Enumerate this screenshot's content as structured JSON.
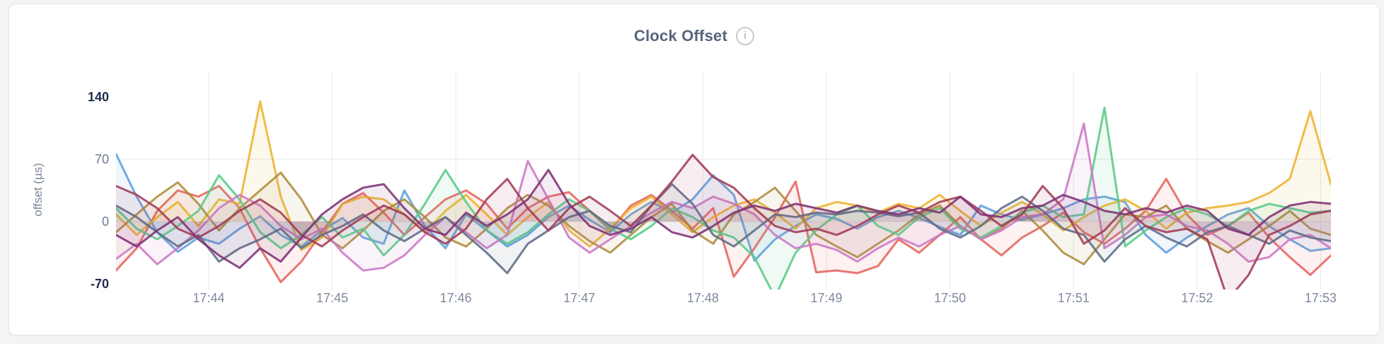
{
  "header": {
    "title": "Clock Offset",
    "info_icon_glyph": "i"
  },
  "styles": {
    "page_bg": "#f4f4f5",
    "card_bg": "#ffffff",
    "card_border": "#e4e4e6",
    "title_color": "#54667e",
    "grid_color": "#e7e7e7",
    "tick_label_color": "#7e899d",
    "y_label_emphasis_color": "#1e2c4e",
    "y_label_color": "#6e7a90",
    "axis_title_color": "#7d8799",
    "info_icon_border": "#cbcbcb",
    "info_icon_color": "#a8a8a8"
  },
  "chart_data": {
    "type": "line",
    "title": "Clock Offset",
    "ylabel": "offset (µs)",
    "xlabel": "",
    "ylim": [
      -70,
      140
    ],
    "grid": "on",
    "legend": "none",
    "time_span_seconds": 590,
    "interval_seconds": 10,
    "start_time": "17:43:15",
    "end_time": "17:53:05",
    "x_ticks": [
      "17:44",
      "17:45",
      "17:46",
      "17:47",
      "17:48",
      "17:49",
      "17:50",
      "17:51",
      "17:52",
      "17:53"
    ],
    "x_tick_offsets_s": [
      45,
      105,
      165,
      225,
      285,
      345,
      405,
      465,
      525,
      585
    ],
    "y_ticks": [
      {
        "label": "140",
        "value": 140,
        "emphasis": true
      },
      {
        "label": "70",
        "value": 70,
        "emphasis": false
      },
      {
        "label": "0",
        "value": 0,
        "emphasis": false
      },
      {
        "label": "-70",
        "value": -70,
        "emphasis": true
      }
    ],
    "h_gridline_values": [
      70,
      0
    ],
    "series": [
      {
        "name": "blue",
        "color": "#5c9fde",
        "values": [
          76,
          28,
          -12,
          -34,
          -18,
          -25,
          -8,
          6,
          -15,
          -28,
          -10,
          4,
          -18,
          -25,
          35,
          -5,
          -30,
          8,
          -10,
          -28,
          -15,
          5,
          18,
          2,
          -12,
          8,
          22,
          10,
          25,
          52,
          30,
          -44,
          -20,
          -5,
          8,
          3,
          -8,
          5,
          12,
          4,
          -6,
          -15,
          18,
          8,
          2,
          8,
          15,
          25,
          28,
          22,
          -15,
          -35,
          -18,
          -5,
          8,
          15,
          -5,
          -20,
          -33,
          -30
        ]
      },
      {
        "name": "coral",
        "color": "#e5645f",
        "values": [
          -55,
          -30,
          12,
          35,
          28,
          40,
          15,
          -30,
          -68,
          -45,
          -12,
          20,
          32,
          10,
          -15,
          5,
          25,
          35,
          20,
          -8,
          15,
          28,
          33,
          12,
          -10,
          18,
          30,
          12,
          -8,
          15,
          -62,
          -30,
          5,
          45,
          -57,
          -55,
          -58,
          -50,
          -20,
          -35,
          -15,
          5,
          -20,
          -38,
          -18,
          -5,
          10,
          -12,
          -25,
          -8,
          12,
          48,
          8,
          -15,
          -5,
          10,
          -18,
          -40,
          -60,
          -38
        ]
      },
      {
        "name": "gold",
        "color": "#edb32f",
        "values": [
          8,
          -15,
          5,
          22,
          -5,
          25,
          20,
          135,
          28,
          -32,
          -18,
          20,
          28,
          25,
          8,
          -12,
          12,
          30,
          8,
          -15,
          5,
          22,
          -10,
          -28,
          -8,
          15,
          28,
          8,
          -12,
          5,
          18,
          25,
          10,
          -8,
          15,
          22,
          18,
          10,
          20,
          15,
          30,
          12,
          -5,
          10,
          22,
          8,
          -10,
          5,
          18,
          25,
          12,
          -8,
          10,
          15,
          18,
          22,
          32,
          48,
          124,
          42
        ]
      },
      {
        "name": "khaki",
        "color": "#ac8c3e",
        "values": [
          -12,
          8,
          28,
          44,
          20,
          -10,
          15,
          35,
          55,
          25,
          -15,
          -30,
          -10,
          12,
          25,
          5,
          -18,
          -28,
          -8,
          15,
          30,
          18,
          -5,
          -22,
          -35,
          -15,
          5,
          20,
          -10,
          -25,
          8,
          22,
          38,
          12,
          -15,
          -28,
          -40,
          -25,
          -10,
          8,
          18,
          -5,
          -20,
          -8,
          12,
          -10,
          -35,
          -48,
          -20,
          8,
          5,
          18,
          -8,
          -22,
          -35,
          -20,
          -5,
          12,
          -8,
          -15
        ]
      },
      {
        "name": "green",
        "color": "#58cb86",
        "values": [
          15,
          -8,
          -20,
          -5,
          12,
          52,
          25,
          -12,
          -30,
          -15,
          5,
          -18,
          -8,
          -38,
          -15,
          20,
          58,
          22,
          -10,
          -25,
          -12,
          8,
          25,
          12,
          -8,
          -20,
          -5,
          15,
          5,
          -10,
          -18,
          -40,
          -85,
          -35,
          -10,
          8,
          18,
          -5,
          -15,
          5,
          15,
          -8,
          -18,
          -5,
          10,
          18,
          5,
          8,
          128,
          -28,
          -10,
          5,
          15,
          8,
          -5,
          12,
          20,
          15,
          10,
          12
        ]
      },
      {
        "name": "orchid",
        "color": "#cc79c4",
        "values": [
          -42,
          -25,
          -48,
          -30,
          -10,
          15,
          30,
          18,
          -5,
          -20,
          -8,
          -35,
          -55,
          -52,
          -38,
          -15,
          5,
          -12,
          -30,
          -15,
          68,
          25,
          -18,
          -35,
          -20,
          -5,
          10,
          22,
          15,
          28,
          20,
          8,
          -15,
          -30,
          -25,
          -32,
          -45,
          -30,
          -18,
          -28,
          -15,
          -5,
          -20,
          -10,
          5,
          8,
          25,
          110,
          -30,
          -15,
          5,
          8,
          -5,
          -10,
          -25,
          -45,
          -40,
          -20,
          -15,
          -30
        ]
      },
      {
        "name": "slate",
        "color": "#5f6c87",
        "values": [
          18,
          5,
          -12,
          -28,
          -15,
          -45,
          -30,
          -20,
          -8,
          -30,
          -15,
          -5,
          8,
          -10,
          -22,
          -8,
          5,
          -15,
          -35,
          -58,
          -25,
          -10,
          5,
          12,
          -5,
          -12,
          18,
          42,
          20,
          -15,
          -28,
          -10,
          8,
          5,
          10,
          8,
          12,
          10,
          6,
          10,
          -8,
          -18,
          -5,
          15,
          28,
          12,
          -8,
          -15,
          -45,
          -20,
          -5,
          -18,
          -28,
          -12,
          -5,
          -15,
          -25,
          -10,
          -18,
          -22
        ]
      },
      {
        "name": "maroon",
        "color": "#a23b55",
        "values": [
          40,
          30,
          15,
          -8,
          -18,
          -5,
          12,
          25,
          10,
          -15,
          -28,
          -10,
          5,
          18,
          8,
          -12,
          -25,
          -8,
          25,
          48,
          15,
          -10,
          15,
          28,
          12,
          -5,
          18,
          45,
          75,
          50,
          38,
          15,
          -5,
          -12,
          -8,
          -15,
          -5,
          8,
          18,
          10,
          22,
          28,
          12,
          -5,
          8,
          40,
          15,
          -25,
          -10,
          15,
          -5,
          -12,
          -8,
          -20,
          -88,
          -60,
          -15,
          -5,
          8,
          12
        ]
      },
      {
        "name": "purple",
        "color": "#7e3173",
        "values": [
          -15,
          -28,
          -10,
          5,
          -20,
          -38,
          -52,
          -30,
          -45,
          -18,
          8,
          25,
          38,
          42,
          15,
          -8,
          -15,
          10,
          -5,
          8,
          25,
          58,
          20,
          -5,
          -15,
          -8,
          5,
          -12,
          -18,
          -5,
          10,
          18,
          12,
          20,
          15,
          10,
          18,
          12,
          8,
          15,
          10,
          28,
          8,
          5,
          15,
          18,
          30,
          22,
          12,
          8,
          15,
          10,
          18,
          12,
          -8,
          -15,
          5,
          18,
          22,
          20
        ]
      }
    ]
  }
}
